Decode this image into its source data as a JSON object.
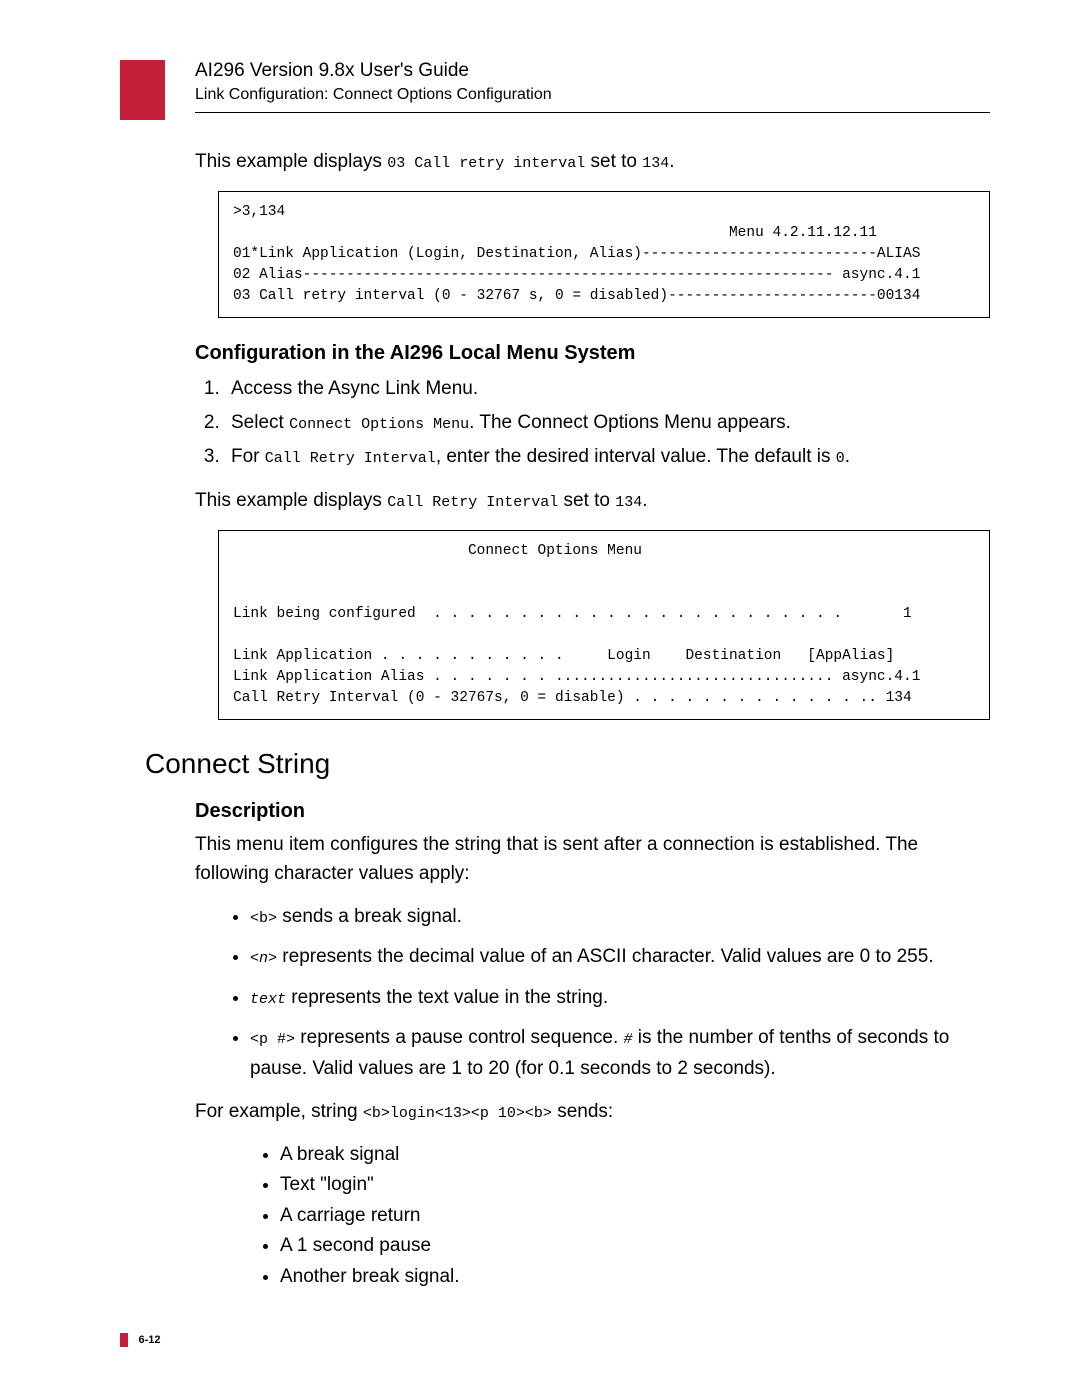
{
  "header": {
    "title": "AI296 Version 9.8x User's Guide",
    "subtitle": "Link Configuration: Connect Options Configuration"
  },
  "intro1": {
    "prefix": "This example displays ",
    "mono": "03 Call retry interval",
    "mid": " set to ",
    "val": "134",
    "suffix": "."
  },
  "codebox1": ">3,134\n                                                         Menu 4.2.11.12.11\n01*Link Application (Login, Destination, Alias)---------------------------ALIAS\n02 Alias------------------------------------------------------------- async.4.1\n03 Call retry interval (0 - 32767 s, 0 = disabled)------------------------00134",
  "config_heading": "Configuration in the AI296 Local Menu System",
  "steps": {
    "s1": "Access the Async Link Menu.",
    "s2_pre": "Select ",
    "s2_mono": "Connect Options Menu",
    "s2_post": ". The Connect Options Menu appears.",
    "s3_pre": "For ",
    "s3_mono": "Call Retry Interval",
    "s3_mid": ", enter the desired interval value. The default is ",
    "s3_val": "0",
    "s3_post": "."
  },
  "intro2": {
    "prefix": "This example displays ",
    "mono": "Call Retry Interval",
    "mid": " set to ",
    "val": "134",
    "suffix": "."
  },
  "codebox2": "                           Connect Options Menu\n\n\nLink being configured  . . . . . . . . . . . . . . . . . . . . . . . .       1\n\nLink Application . . . . . . . . . . .     Login    Destination   [AppAlias]\nLink Application Alias . . . . . . . ................................ async.4.1\nCall Retry Interval (0 - 32767s, 0 = disable) . . . . . . . . . . . . . .. 134",
  "h2": "Connect String",
  "desc_heading": "Description",
  "desc_text": "This menu item configures the string that is sent after a connection is established. The following character values apply:",
  "bullets": {
    "b1_mono": "<b>",
    "b1_text": " sends a break signal.",
    "b2_mono": "<n>",
    "b2_text": " represents the decimal value of an ASCII character. Valid values are 0 to 255.",
    "b3_mono": "text",
    "b3_text": " represents the text value in the string.",
    "b4_mono1": "<p #>",
    "b4_text1": " represents a pause control sequence. ",
    "b4_mono2": "#",
    "b4_text2": " is the number of tenths of seconds to pause. Valid values are 1 to 20 (for 0.1 seconds to 2 seconds)."
  },
  "example_line": {
    "prefix": "For example, string ",
    "mono": "<b>login<13><p 10><b>",
    "suffix": " sends:"
  },
  "sends_list": {
    "i1": "A break signal",
    "i2": "Text \"login\"",
    "i3": "A carriage return",
    "i4": "A 1 second pause",
    "i5": "Another break signal."
  },
  "footer": "6-12"
}
